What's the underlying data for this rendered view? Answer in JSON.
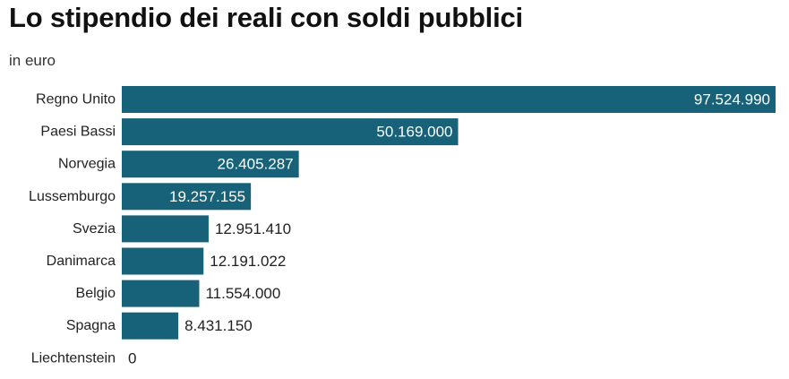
{
  "header": {
    "title": "Lo stipendio dei reali con soldi pubblici",
    "subtitle": "in euro"
  },
  "colors": {
    "bar": "#176278",
    "label_inside": "#ffffff",
    "label_outside": "#222222"
  },
  "chart_data": {
    "type": "bar",
    "orientation": "horizontal",
    "title": "Lo stipendio dei reali con soldi pubblici",
    "subtitle": "in euro",
    "xlabel": "",
    "ylabel": "",
    "grid": false,
    "legend": "none",
    "xlim": [
      0,
      97524990
    ],
    "categories": [
      "Regno Unito",
      "Paesi Bassi",
      "Norvegia",
      "Lussemburgo",
      "Svezia",
      "Danimarca",
      "Belgio",
      "Spagna",
      "Liechtenstein"
    ],
    "values": [
      97524990,
      50169000,
      26405287,
      19257155,
      12951410,
      12191022,
      11554000,
      8431150,
      0
    ],
    "value_labels": [
      "97.524.990",
      "50.169.000",
      "26.405.287",
      "19.257.155",
      "12.951.410",
      "12.191.022",
      "11.554.000",
      "8.431.150",
      "0"
    ]
  }
}
